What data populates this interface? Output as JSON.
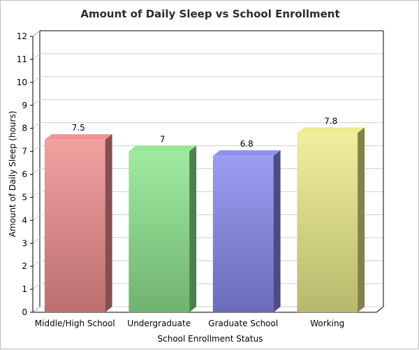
{
  "chart_data": {
    "type": "bar",
    "title": "Amount of Daily Sleep vs School Enrollment",
    "xlabel": "School Enrollment Status",
    "ylabel": "Amount of Daily Sleep (hours)",
    "categories": [
      "Middle/High School",
      "Undergraduate",
      "Graduate School",
      "Working"
    ],
    "values": [
      7.5,
      7,
      6.8,
      7.8
    ],
    "data_labels": [
      "7.5",
      "7",
      "6.8",
      "7.8"
    ],
    "ylim": [
      0,
      12
    ],
    "yticks": [
      0,
      1,
      2,
      3,
      4,
      5,
      6,
      7,
      8,
      9,
      10,
      11,
      12
    ],
    "grid": true,
    "legend": "none",
    "bar_style": "3d",
    "colors": [
      "#f09090",
      "#8fe68f",
      "#8a8af0",
      "#ecec8a"
    ]
  }
}
